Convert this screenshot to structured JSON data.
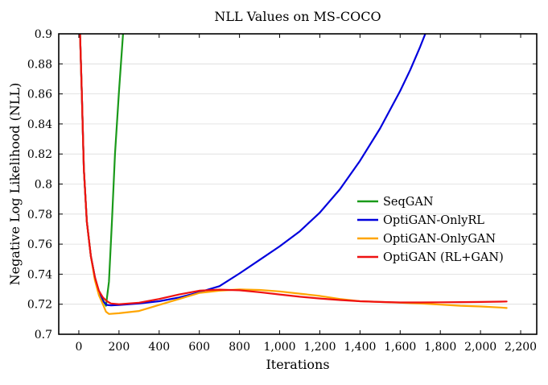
{
  "chart_data": {
    "type": "line",
    "title": "NLL Values on MS-COCO",
    "xlabel": "Iterations",
    "ylabel": "Negative Log Likelihood (NLL)",
    "xlim": [
      -100,
      2280
    ],
    "ylim": [
      0.7,
      0.9
    ],
    "grid": true,
    "legend_position": "center-right",
    "x_ticks": [
      {
        "value": 0,
        "label": "0"
      },
      {
        "value": 200,
        "label": "200"
      },
      {
        "value": 400,
        "label": "400"
      },
      {
        "value": 600,
        "label": "600"
      },
      {
        "value": 800,
        "label": "800"
      },
      {
        "value": 1000,
        "label": "1,000"
      },
      {
        "value": 1200,
        "label": "1,200"
      },
      {
        "value": 1400,
        "label": "1,400"
      },
      {
        "value": 1600,
        "label": "1,600"
      },
      {
        "value": 1800,
        "label": "1,800"
      },
      {
        "value": 2000,
        "label": "2,000"
      },
      {
        "value": 2200,
        "label": "2,200"
      }
    ],
    "y_ticks": [
      {
        "value": 0.7,
        "label": "0.7"
      },
      {
        "value": 0.72,
        "label": "0.72"
      },
      {
        "value": 0.74,
        "label": "0.74"
      },
      {
        "value": 0.76,
        "label": "0.76"
      },
      {
        "value": 0.78,
        "label": "0.78"
      },
      {
        "value": 0.8,
        "label": "0.8"
      },
      {
        "value": 0.82,
        "label": "0.82"
      },
      {
        "value": 0.84,
        "label": "0.84"
      },
      {
        "value": 0.86,
        "label": "0.86"
      },
      {
        "value": 0.88,
        "label": "0.88"
      },
      {
        "value": 0.9,
        "label": "0.9"
      }
    ],
    "series": [
      {
        "name": "SeqGAN",
        "color": "#1a9a1a",
        "x": [
          5,
          15,
          25,
          40,
          60,
          80,
          100,
          120,
          135,
          150,
          165,
          180,
          200,
          220,
          235
        ],
        "y": [
          0.905,
          0.86,
          0.81,
          0.775,
          0.752,
          0.738,
          0.728,
          0.723,
          0.719,
          0.735,
          0.775,
          0.82,
          0.862,
          0.9,
          0.92
        ]
      },
      {
        "name": "OptiGAN-OnlyRL",
        "color": "#0000dd",
        "x": [
          5,
          15,
          25,
          40,
          60,
          80,
          100,
          120,
          140,
          160,
          200,
          300,
          400,
          500,
          600,
          700,
          800,
          900,
          1000,
          1100,
          1200,
          1300,
          1400,
          1500,
          1600,
          1650,
          1700,
          1725
        ],
        "y": [
          0.905,
          0.86,
          0.81,
          0.775,
          0.752,
          0.738,
          0.728,
          0.722,
          0.7195,
          0.7192,
          0.7195,
          0.7205,
          0.722,
          0.7245,
          0.728,
          0.732,
          0.7405,
          0.7495,
          0.7585,
          0.7685,
          0.781,
          0.7965,
          0.8155,
          0.837,
          0.862,
          0.876,
          0.8915,
          0.9
        ]
      },
      {
        "name": "OptiGAN-OnlyGAN",
        "color": "#ffa500",
        "x": [
          5,
          15,
          25,
          40,
          60,
          80,
          100,
          120,
          135,
          150,
          200,
          300,
          400,
          500,
          600,
          700,
          800,
          900,
          1000,
          1100,
          1200,
          1300,
          1400,
          1500,
          1600,
          1700,
          1800,
          1900,
          2000,
          2100,
          2130
        ],
        "y": [
          0.905,
          0.86,
          0.81,
          0.775,
          0.752,
          0.736,
          0.726,
          0.72,
          0.715,
          0.7135,
          0.714,
          0.7155,
          0.7195,
          0.7235,
          0.7275,
          0.729,
          0.7298,
          0.7295,
          0.7285,
          0.727,
          0.7255,
          0.7235,
          0.722,
          0.7215,
          0.721,
          0.7205,
          0.7198,
          0.719,
          0.7185,
          0.7178,
          0.7175
        ]
      },
      {
        "name": "OptiGAN (RL+GAN)",
        "color": "#ee1111",
        "x": [
          5,
          15,
          25,
          40,
          60,
          80,
          100,
          120,
          140,
          160,
          200,
          300,
          400,
          500,
          600,
          700,
          800,
          900,
          1000,
          1100,
          1200,
          1300,
          1400,
          1500,
          1600,
          1700,
          1800,
          1900,
          2000,
          2100,
          2130
        ],
        "y": [
          0.905,
          0.86,
          0.81,
          0.775,
          0.752,
          0.738,
          0.729,
          0.7245,
          0.722,
          0.7205,
          0.72,
          0.721,
          0.7235,
          0.7265,
          0.729,
          0.7297,
          0.7293,
          0.728,
          0.7265,
          0.725,
          0.7238,
          0.7228,
          0.722,
          0.7215,
          0.7212,
          0.7212,
          0.7213,
          0.7214,
          0.7215,
          0.7217,
          0.7218
        ]
      }
    ]
  }
}
